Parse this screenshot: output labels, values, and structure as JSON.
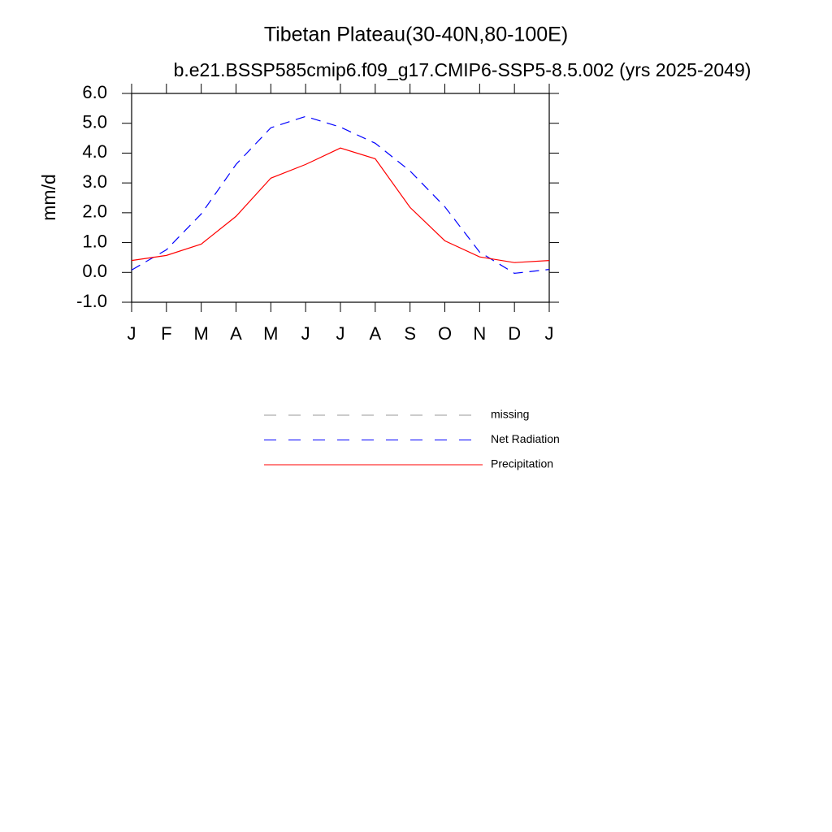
{
  "chart_data": {
    "type": "line",
    "title": "Tibetan Plateau(30-40N,80-100E)",
    "subtitle": "b.e21.BSSP585cmip6.f09_g17.CMIP6-SSP5-8.5.002 (yrs 2025-2049)",
    "y_label": "mm/d",
    "categories": [
      "J",
      "F",
      "M",
      "A",
      "M",
      "J",
      "J",
      "A",
      "S",
      "O",
      "N",
      "D",
      "J"
    ],
    "series": [
      {
        "name": "missing",
        "color": "#999999",
        "dash": true,
        "values": [
          null,
          null,
          null,
          null,
          null,
          null,
          null,
          null,
          null,
          null,
          null,
          null,
          null
        ]
      },
      {
        "name": "Net Radiation",
        "color": "#0000ff",
        "dash": true,
        "values": [
          0.08,
          0.76,
          1.96,
          3.62,
          4.85,
          5.23,
          4.87,
          4.33,
          3.4,
          2.2,
          0.68,
          -0.03,
          0.1
        ]
      },
      {
        "name": "Precipitation",
        "color": "#ff0000",
        "dash": false,
        "values": [
          0.4,
          0.57,
          0.95,
          1.88,
          3.16,
          3.62,
          4.17,
          3.81,
          2.18,
          1.06,
          0.52,
          0.33,
          0.4
        ]
      }
    ],
    "ylim": [
      -1,
      6
    ],
    "yticks": [
      {
        "value": -1,
        "label": "-1.0"
      },
      {
        "value": 0,
        "label": "0.0"
      },
      {
        "value": 1,
        "label": "1.0"
      },
      {
        "value": 2,
        "label": "2.0"
      },
      {
        "value": 3,
        "label": "3.0"
      },
      {
        "value": 4,
        "label": "4.0"
      },
      {
        "value": 5,
        "label": "5.0"
      },
      {
        "value": 6,
        "label": "6.0"
      }
    ]
  }
}
